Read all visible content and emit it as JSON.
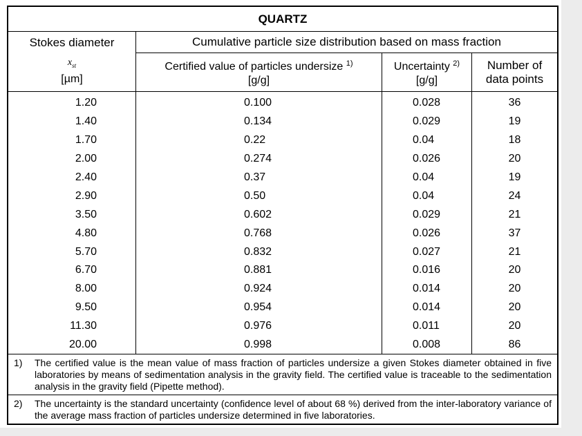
{
  "title": "QUARTZ",
  "header": {
    "stokes": "Stokes diameter",
    "symbol": "x",
    "symbol_sub": "st",
    "stokes_unit": "[µm]",
    "group": "Cumulative particle size distribution based on mass fraction",
    "certified": "Certified value of particles undersize",
    "certified_note": "1)",
    "certified_unit": "[g/g]",
    "uncertainty": "Uncertainty",
    "uncertainty_note": "2)",
    "uncertainty_unit": "[g/g]",
    "points": "Number of data points"
  },
  "rows": [
    [
      "1.20",
      "0.100",
      "0.028",
      "36"
    ],
    [
      "1.40",
      "0.134",
      "0.029",
      "19"
    ],
    [
      "1.70",
      "0.22",
      "0.04",
      "18"
    ],
    [
      "2.00",
      "0.274",
      "0.026",
      "20"
    ],
    [
      "2.40",
      "0.37",
      "0.04",
      "19"
    ],
    [
      "2.90",
      "0.50",
      "0.04",
      "24"
    ],
    [
      "3.50",
      "0.602",
      "0.029",
      "21"
    ],
    [
      "4.80",
      "0.768",
      "0.026",
      "37"
    ],
    [
      "5.70",
      "0.832",
      "0.027",
      "21"
    ],
    [
      "6.70",
      "0.881",
      "0.016",
      "20"
    ],
    [
      "8.00",
      "0.924",
      "0.014",
      "20"
    ],
    [
      "9.50",
      "0.954",
      "0.014",
      "20"
    ],
    [
      "11.30",
      "0.976",
      "0.011",
      "20"
    ],
    [
      "20.00",
      "0.998",
      "0.008",
      "86"
    ]
  ],
  "footnotes": [
    {
      "mark": "1)",
      "text": "The certified value is the mean value of mass fraction of particles undersize a given Stokes diameter obtained in five laboratories by means of sedimentation analysis in the gravity field. The certified value is traceable to the sedimentation analysis in the gravity field (Pipette method)."
    },
    {
      "mark": "2)",
      "text": "The uncertainty is the standard uncertainty (confidence level of about 68 %) derived from the inter-laboratory variance of the average mass fraction of particles undersize determined in five laboratories."
    }
  ]
}
